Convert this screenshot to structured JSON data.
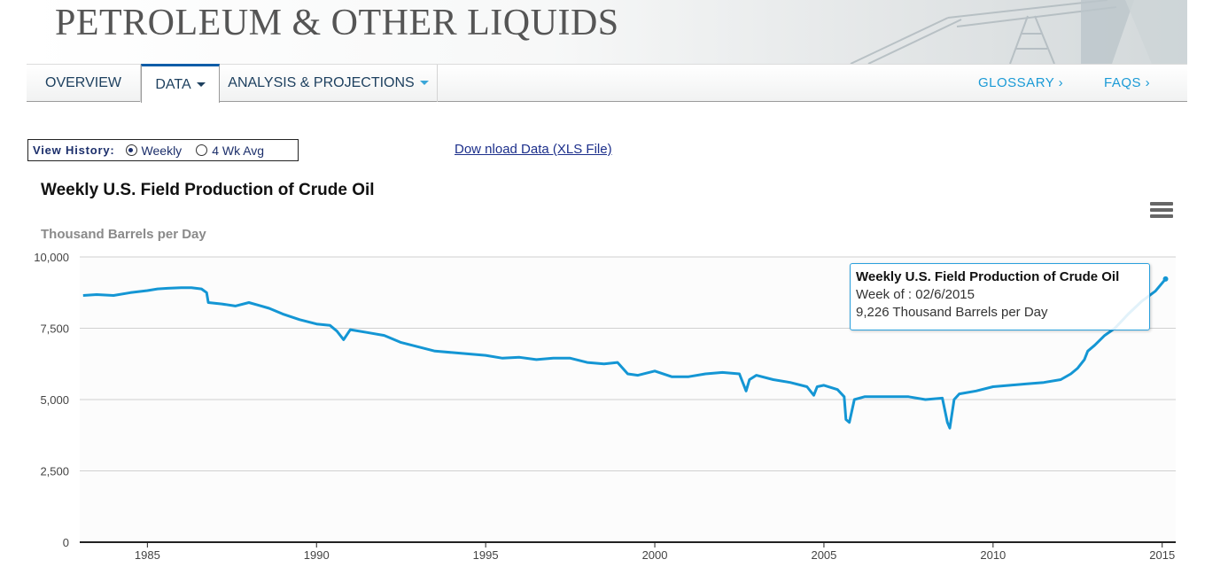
{
  "banner": {
    "title": "PETROLEUM & OTHER LIQUIDS"
  },
  "nav": {
    "tabs": [
      {
        "label": "OVERVIEW"
      },
      {
        "label": "DATA"
      },
      {
        "label": "ANALYSIS & PROJECTIONS"
      }
    ],
    "glossary": "GLOSSARY ›",
    "faqs": "FAQS ›"
  },
  "controls": {
    "view_history_label": "View History:",
    "options": [
      {
        "label": "Weekly",
        "selected": true
      },
      {
        "label": "4 Wk Avg",
        "selected": false
      }
    ],
    "download_link": "Dow nload Data (XLS File)"
  },
  "tooltip": {
    "title": "Weekly U.S. Field Production of Crude Oil",
    "week": "Week of : 02/6/2015",
    "value": "9,226 Thousand Barrels per Day"
  },
  "chart_data": {
    "type": "line",
    "title": "Weekly U.S. Field Production of Crude Oil",
    "ylabel": "Thousand Barrels per Day",
    "xlabel": "",
    "ylim": [
      0,
      10000
    ],
    "xlim": [
      1983.0,
      2015.4
    ],
    "y_ticks": [
      "0",
      "2,500",
      "5,000",
      "7,500",
      "10,000"
    ],
    "y_tick_values": [
      0,
      2500,
      5000,
      7500,
      10000
    ],
    "x_ticks": [
      "1985",
      "1990",
      "1995",
      "2000",
      "2005",
      "2010",
      "2015"
    ],
    "x_tick_values": [
      1985,
      1990,
      1995,
      2000,
      2005,
      2010,
      2015
    ],
    "grid": true,
    "color": "#1496d4",
    "series": [
      {
        "x": [
          1983.1,
          1983.5,
          1984.0,
          1984.5,
          1985.0,
          1985.3,
          1985.6,
          1986.0,
          1986.3,
          1986.6,
          1986.75,
          1986.8,
          1987.2,
          1987.6,
          1988.0,
          1988.3,
          1988.6,
          1989.0,
          1989.5,
          1990.0,
          1990.4,
          1990.6,
          1990.8,
          1991.0,
          1991.5,
          1992.0,
          1992.5,
          1993.0,
          1993.5,
          1994.0,
          1994.5,
          1995.0,
          1995.5,
          1996.0,
          1996.5,
          1997.0,
          1997.5,
          1998.0,
          1998.5,
          1998.9,
          1999.2,
          1999.5,
          2000.0,
          2000.5,
          2001.0,
          2001.5,
          2002.0,
          2002.5,
          2002.7,
          2002.8,
          2003.0,
          2003.5,
          2004.0,
          2004.5,
          2004.7,
          2004.8,
          2005.0,
          2005.4,
          2005.6,
          2005.65,
          2005.75,
          2005.9,
          2006.2,
          2006.5,
          2007.0,
          2007.5,
          2008.0,
          2008.5,
          2008.65,
          2008.72,
          2008.85,
          2009.0,
          2009.5,
          2010.0,
          2010.5,
          2011.0,
          2011.5,
          2012.0,
          2012.3,
          2012.5,
          2012.7,
          2012.8,
          2013.0,
          2013.3,
          2013.6,
          2014.0,
          2014.4,
          2014.8,
          2015.1
        ],
        "y": [
          8650,
          8680,
          8650,
          8750,
          8820,
          8880,
          8900,
          8920,
          8920,
          8880,
          8750,
          8400,
          8350,
          8280,
          8400,
          8300,
          8200,
          8000,
          7800,
          7650,
          7600,
          7400,
          7100,
          7450,
          7350,
          7250,
          7000,
          6850,
          6700,
          6650,
          6600,
          6550,
          6450,
          6480,
          6400,
          6450,
          6450,
          6300,
          6250,
          6300,
          5900,
          5850,
          6000,
          5800,
          5800,
          5900,
          5950,
          5900,
          5300,
          5700,
          5850,
          5700,
          5600,
          5450,
          5150,
          5450,
          5500,
          5350,
          5100,
          4300,
          4200,
          5000,
          5100,
          5100,
          5100,
          5100,
          5000,
          5050,
          4200,
          4000,
          5000,
          5200,
          5300,
          5450,
          5500,
          5550,
          5600,
          5700,
          5900,
          6100,
          6400,
          6700,
          6900,
          7250,
          7500,
          8000,
          8450,
          8800,
          9226
        ]
      }
    ]
  }
}
